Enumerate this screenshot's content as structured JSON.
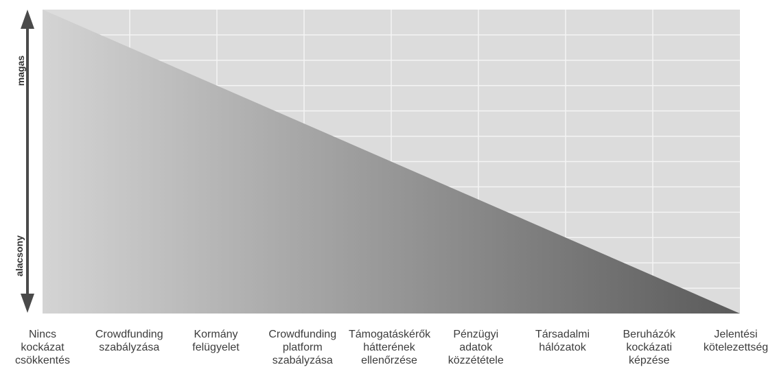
{
  "diagram": {
    "axis": {
      "top_label": "magas",
      "bottom_label": "alacsony"
    },
    "categories": [
      "Nincs\nkockázat\ncsökkentés",
      "Crowdfunding\nszabályzása",
      "Kormány\nfelügyelet",
      "Crowdfunding\nplatform\nszabályzása",
      "Támogatáskérők\nhátterének\nellenőrzése",
      "Pénzügyi\nadatok\nközzététele",
      "Társadalmi\nhálózatok",
      "Beruházók\nkockázati\nképzése",
      "Jelentési\nkötelezettség"
    ],
    "colors": {
      "grid_background": "#dcdcdc",
      "grid_lines": "#f4f4f4",
      "gradient_light": "#d4d4d4",
      "gradient_dark": "#5a5a5a",
      "arrow": "#4a4a4a"
    }
  }
}
